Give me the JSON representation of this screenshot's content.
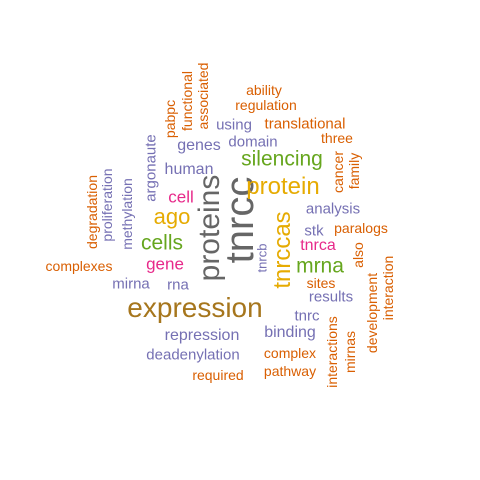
{
  "word_cloud": {
    "words": [
      {
        "text": "tnrcc",
        "color": "#666666"
      },
      {
        "text": "proteins",
        "color": "#666666"
      },
      {
        "text": "expression",
        "color": "#a6761d"
      },
      {
        "text": "protein",
        "color": "#e6ab02"
      },
      {
        "text": "tnrccas",
        "color": "#e6ab02"
      },
      {
        "text": "ago",
        "color": "#e6ab02"
      },
      {
        "text": "silencing",
        "color": "#66a61e"
      },
      {
        "text": "cells",
        "color": "#66a61e"
      },
      {
        "text": "mrna",
        "color": "#66a61e"
      },
      {
        "text": "cell",
        "color": "#e7298a"
      },
      {
        "text": "gene",
        "color": "#e7298a"
      },
      {
        "text": "tnrca",
        "color": "#e7298a"
      },
      {
        "text": "human",
        "color": "#7570b3"
      },
      {
        "text": "genes",
        "color": "#7570b3"
      },
      {
        "text": "domain",
        "color": "#7570b3"
      },
      {
        "text": "using",
        "color": "#7570b3"
      },
      {
        "text": "analysis",
        "color": "#7570b3"
      },
      {
        "text": "stk",
        "color": "#7570b3"
      },
      {
        "text": "results",
        "color": "#7570b3"
      },
      {
        "text": "binding",
        "color": "#7570b3"
      },
      {
        "text": "repression",
        "color": "#7570b3"
      },
      {
        "text": "deadenylation",
        "color": "#7570b3"
      },
      {
        "text": "mirna",
        "color": "#7570b3"
      },
      {
        "text": "rna",
        "color": "#7570b3"
      },
      {
        "text": "tnrc",
        "color": "#7570b3"
      },
      {
        "text": "tnrcb",
        "color": "#7570b3"
      },
      {
        "text": "argonaute",
        "color": "#7570b3"
      },
      {
        "text": "proliferation",
        "color": "#7570b3"
      },
      {
        "text": "methylation",
        "color": "#7570b3"
      },
      {
        "text": "translational",
        "color": "#d95f02"
      },
      {
        "text": "regulation",
        "color": "#d95f02"
      },
      {
        "text": "ability",
        "color": "#d95f02"
      },
      {
        "text": "three",
        "color": "#d95f02"
      },
      {
        "text": "cancer",
        "color": "#d95f02"
      },
      {
        "text": "family",
        "color": "#d95f02"
      },
      {
        "text": "paralogs",
        "color": "#d95f02"
      },
      {
        "text": "also",
        "color": "#d95f02"
      },
      {
        "text": "sites",
        "color": "#d95f02"
      },
      {
        "text": "complex",
        "color": "#d95f02"
      },
      {
        "text": "pathway",
        "color": "#d95f02"
      },
      {
        "text": "required",
        "color": "#d95f02"
      },
      {
        "text": "complexes",
        "color": "#d95f02"
      },
      {
        "text": "degradation",
        "color": "#d95f02"
      },
      {
        "text": "pabpc",
        "color": "#d95f02"
      },
      {
        "text": "functional",
        "color": "#d95f02"
      },
      {
        "text": "associated",
        "color": "#d95f02"
      },
      {
        "text": "interaction",
        "color": "#d95f02"
      },
      {
        "text": "development",
        "color": "#d95f02"
      },
      {
        "text": "mirnas",
        "color": "#d95f02"
      },
      {
        "text": "interactions",
        "color": "#d95f02"
      }
    ]
  }
}
